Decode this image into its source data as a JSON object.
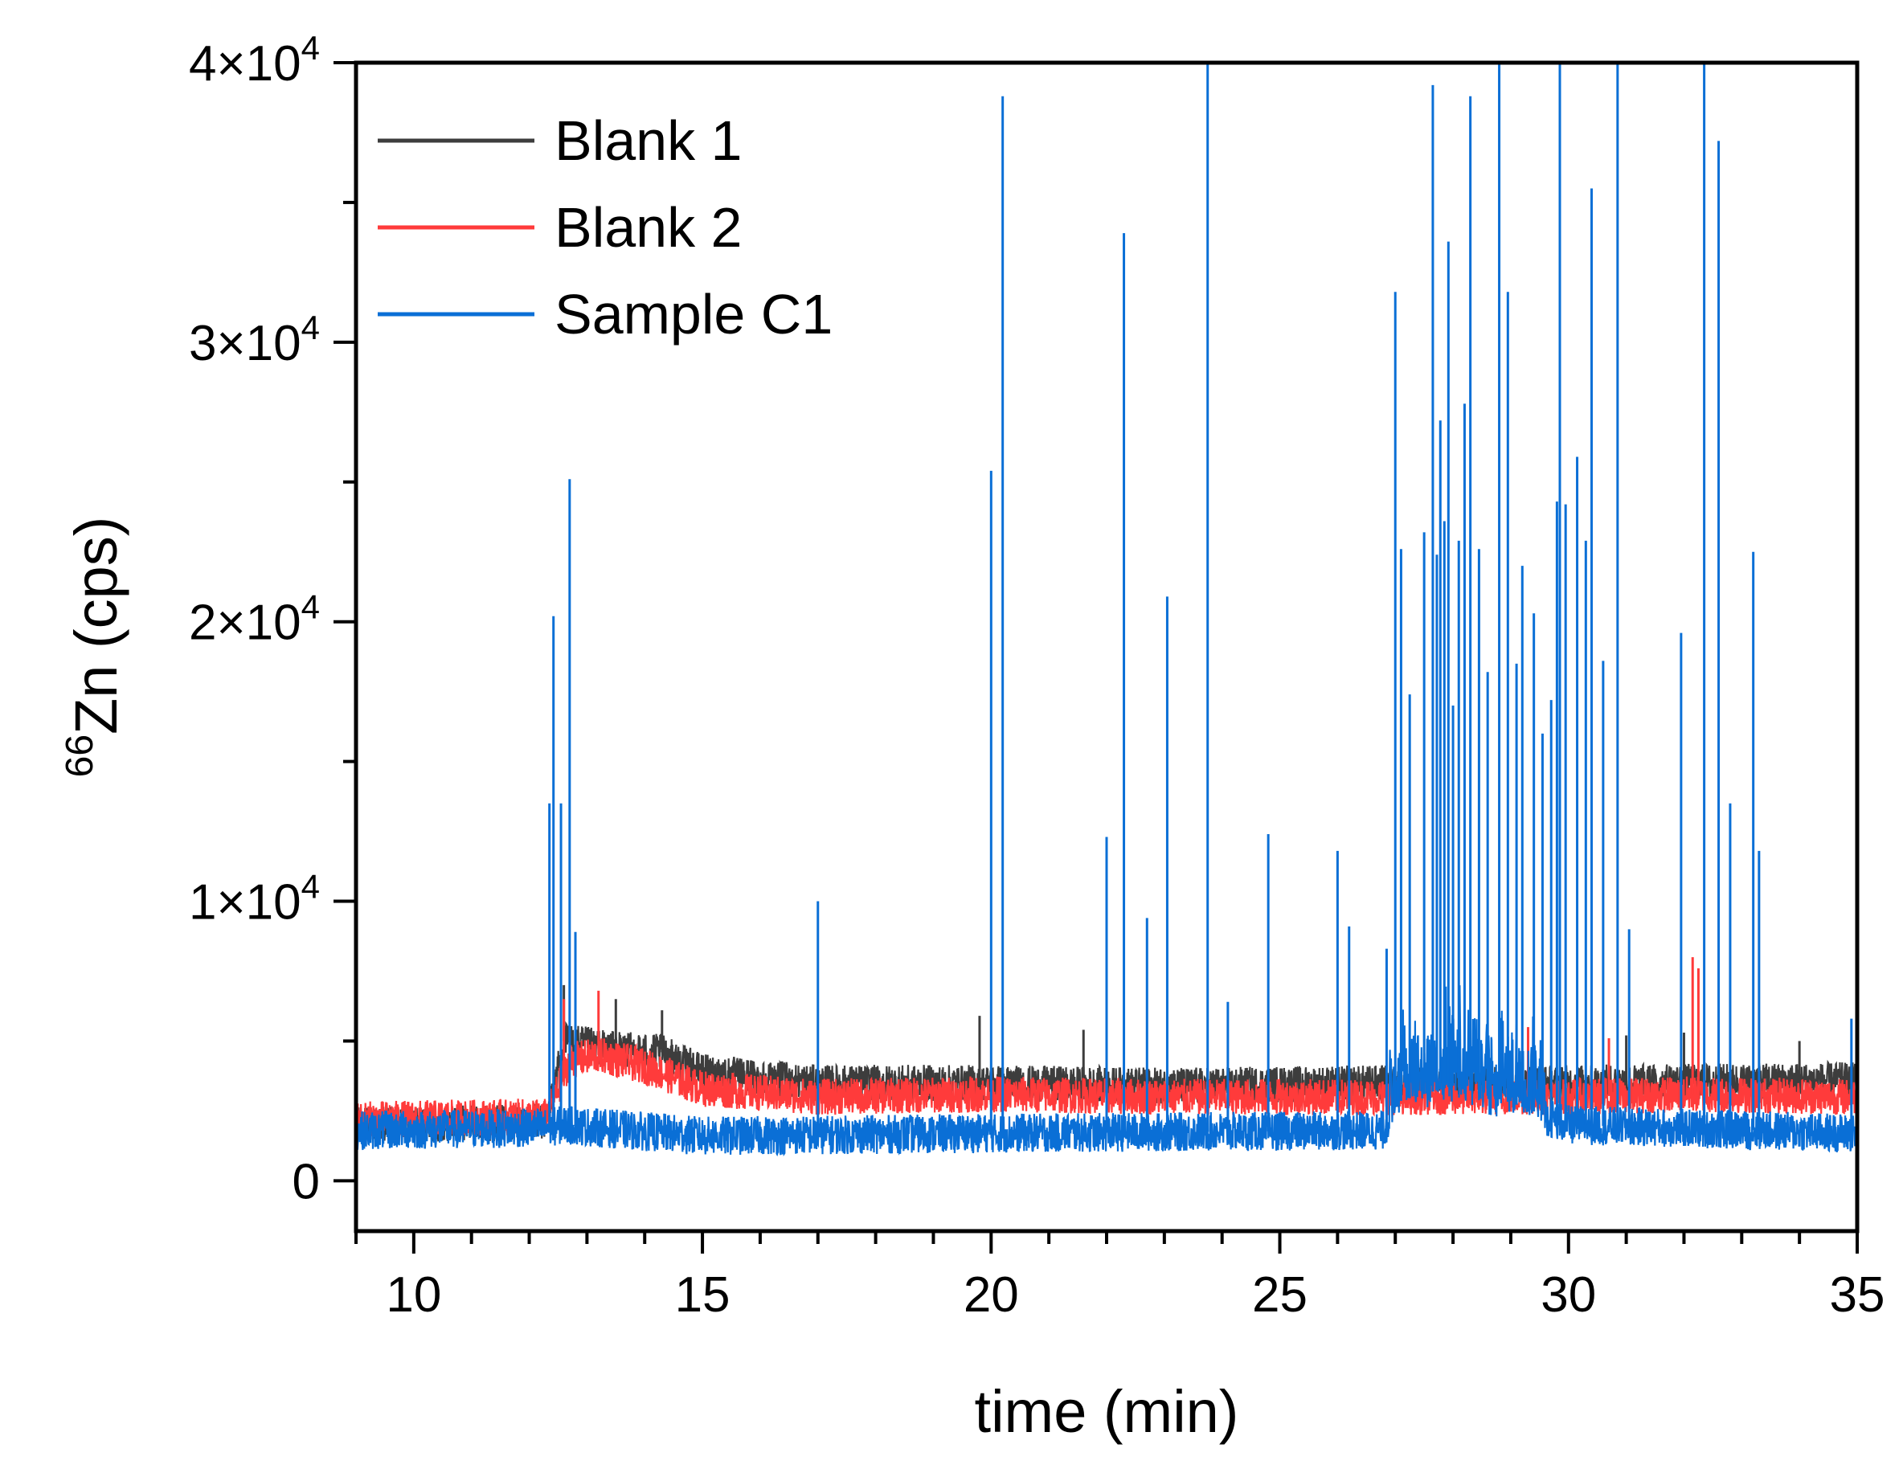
{
  "chart_data": {
    "type": "line",
    "xlabel": "time (min)",
    "ylabel": "66Zn (cps)",
    "ylabel_isotope_mass": "66",
    "ylabel_main": "Zn (cps)",
    "xlim": [
      9,
      35
    ],
    "ylim": [
      -1800,
      40000
    ],
    "x_ticks": [
      10,
      15,
      20,
      25,
      30,
      35
    ],
    "x_tick_labels": [
      "10",
      "15",
      "20",
      "25",
      "30",
      "35"
    ],
    "y_ticks": [
      0,
      10000,
      20000,
      30000,
      40000
    ],
    "y_tick_labels": [
      {
        "text": "0",
        "mantissa": "",
        "exp": ""
      },
      {
        "text": "1×10^4",
        "mantissa": "1×10",
        "exp": "4"
      },
      {
        "text": "2×10^4",
        "mantissa": "2×10",
        "exp": "4"
      },
      {
        "text": "3×10^4",
        "mantissa": "3×10",
        "exp": "4"
      },
      {
        "text": "4×10^4",
        "mantissa": "4×10",
        "exp": "4"
      }
    ],
    "legend_position": "top-left",
    "series": [
      {
        "name": "Blank 1",
        "color": "#3d3d3d",
        "baseline": [
          [
            9,
            2000
          ],
          [
            12.3,
            2100
          ],
          [
            12.6,
            5000
          ],
          [
            13.5,
            4700
          ],
          [
            14.3,
            4600
          ],
          [
            15,
            3900
          ],
          [
            17,
            3500
          ],
          [
            20,
            3500
          ],
          [
            23,
            3400
          ],
          [
            27,
            3500
          ],
          [
            30,
            3500
          ],
          [
            35,
            3600
          ]
        ],
        "spikes": [
          [
            12.6,
            7000
          ],
          [
            13.5,
            6500
          ],
          [
            14.3,
            6100
          ],
          [
            19.8,
            5900
          ],
          [
            21.6,
            5400
          ],
          [
            28.0,
            5800
          ],
          [
            31.0,
            5200
          ],
          [
            32.0,
            5300
          ],
          [
            34.0,
            5000
          ]
        ]
      },
      {
        "name": "Blank 2",
        "color": "#ff3b3b",
        "baseline": [
          [
            9,
            2200
          ],
          [
            12.3,
            2300
          ],
          [
            12.7,
            4300
          ],
          [
            13.2,
            4500
          ],
          [
            14,
            4100
          ],
          [
            15,
            3300
          ],
          [
            17,
            3000
          ],
          [
            20,
            3100
          ],
          [
            23,
            3000
          ],
          [
            27,
            3000
          ],
          [
            30,
            3000
          ],
          [
            32.1,
            3100
          ],
          [
            35,
            3000
          ]
        ],
        "spikes": [
          [
            12.6,
            6500
          ],
          [
            13.2,
            6800
          ],
          [
            29.3,
            5500
          ],
          [
            30.7,
            5100
          ],
          [
            32.15,
            8000
          ],
          [
            32.25,
            7600
          ]
        ]
      },
      {
        "name": "Sample C1",
        "color": "#0a6fd6",
        "baseline": [
          [
            9,
            1800
          ],
          [
            12.3,
            1900
          ],
          [
            12.6,
            2000
          ],
          [
            15,
            1600
          ],
          [
            20,
            1700
          ],
          [
            26.8,
            1800
          ],
          [
            27.0,
            2800
          ],
          [
            28.0,
            3400
          ],
          [
            29.0,
            2800
          ],
          [
            30.0,
            2000
          ],
          [
            35,
            1700
          ]
        ],
        "spikes": [
          [
            12.35,
            13500
          ],
          [
            12.42,
            20200
          ],
          [
            12.55,
            13500
          ],
          [
            12.7,
            25100
          ],
          [
            12.8,
            8900
          ],
          [
            17.0,
            10000
          ],
          [
            20.0,
            25400
          ],
          [
            20.2,
            38800
          ],
          [
            22.0,
            12300
          ],
          [
            22.3,
            33900
          ],
          [
            22.7,
            9400
          ],
          [
            23.05,
            20900
          ],
          [
            23.75,
            40000
          ],
          [
            24.1,
            6400
          ],
          [
            24.8,
            12400
          ],
          [
            26.0,
            11800
          ],
          [
            26.2,
            9100
          ],
          [
            26.85,
            8300
          ],
          [
            27.0,
            31800
          ],
          [
            27.1,
            22600
          ],
          [
            27.25,
            17400
          ],
          [
            27.5,
            23200
          ],
          [
            27.65,
            39200
          ],
          [
            27.72,
            22400
          ],
          [
            27.78,
            27200
          ],
          [
            27.85,
            23600
          ],
          [
            27.92,
            33600
          ],
          [
            28.0,
            17000
          ],
          [
            28.1,
            22900
          ],
          [
            28.2,
            27800
          ],
          [
            28.3,
            38800
          ],
          [
            28.45,
            22600
          ],
          [
            28.6,
            18200
          ],
          [
            28.8,
            40000
          ],
          [
            28.95,
            31800
          ],
          [
            29.1,
            18500
          ],
          [
            29.2,
            22000
          ],
          [
            29.4,
            20300
          ],
          [
            29.55,
            16000
          ],
          [
            29.7,
            17200
          ],
          [
            29.8,
            24300
          ],
          [
            29.85,
            40000
          ],
          [
            29.95,
            24200
          ],
          [
            30.15,
            25900
          ],
          [
            30.3,
            22900
          ],
          [
            30.4,
            35500
          ],
          [
            30.6,
            18600
          ],
          [
            30.85,
            40000
          ],
          [
            31.05,
            9000
          ],
          [
            31.95,
            19600
          ],
          [
            32.35,
            40000
          ],
          [
            32.6,
            37200
          ],
          [
            32.8,
            13500
          ],
          [
            33.2,
            22500
          ],
          [
            33.3,
            11800
          ],
          [
            34.9,
            5800
          ]
        ]
      }
    ]
  }
}
